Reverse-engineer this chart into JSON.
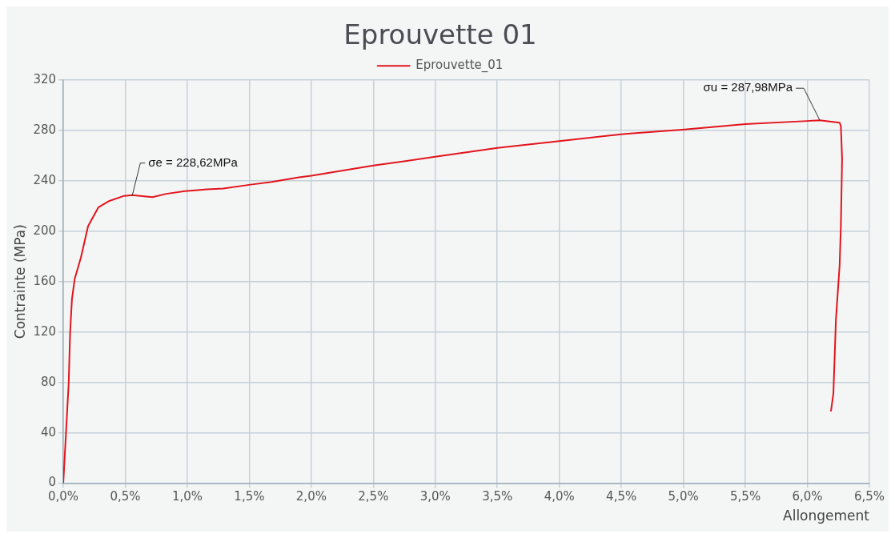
{
  "chart_data": {
    "type": "line",
    "title": "Eprouvette 01",
    "xlabel": "Allongement",
    "ylabel": "Contrainte (MPa)",
    "series": [
      {
        "name": "Eprouvette_01",
        "color": "#e3141c",
        "x": [
          0,
          0.022,
          0.044,
          0.055,
          0.07,
          0.092,
          0.142,
          0.2,
          0.284,
          0.372,
          0.49,
          0.557,
          0.72,
          0.83,
          0.98,
          1.16,
          1.29,
          1.51,
          1.68,
          1.9,
          2.0,
          2.5,
          3.0,
          3.5,
          4.0,
          4.53,
          5.01,
          5.5,
          6.0,
          6.1,
          6.26,
          6.27,
          6.28,
          6.27,
          6.26,
          6.23,
          6.21,
          6.19
        ],
        "values": [
          0,
          40,
          80,
          119,
          146,
          162,
          179,
          204,
          219,
          224,
          228,
          228.62,
          227,
          229.6,
          231.7,
          233.2,
          233.8,
          236.9,
          239,
          242.7,
          244,
          252,
          259,
          266,
          271.5,
          277.2,
          280.7,
          284.9,
          287.4,
          287.98,
          286,
          283.4,
          257.6,
          203.8,
          172.8,
          129.4,
          71.5,
          57
        ]
      }
    ],
    "annotations": [
      {
        "text": "σe = 228,62MPa",
        "x": 0.557,
        "y": 228.62
      },
      {
        "text": "σu = 287,98MPa",
        "x": 6.1,
        "y": 287.98
      }
    ],
    "xlim": [
      0,
      6.5
    ],
    "ylim": [
      0,
      320
    ],
    "xticks": [
      {
        "value": 0,
        "label": "0,0%"
      },
      {
        "value": 0.5,
        "label": "0,5%"
      },
      {
        "value": 1,
        "label": "1,0%"
      },
      {
        "value": 1.5,
        "label": "1,5%"
      },
      {
        "value": 2,
        "label": "2,0%"
      },
      {
        "value": 2.5,
        "label": "2,5%"
      },
      {
        "value": 3,
        "label": "3,0%"
      },
      {
        "value": 3.5,
        "label": "3,5%"
      },
      {
        "value": 4,
        "label": "4,0%"
      },
      {
        "value": 4.5,
        "label": "4,5%"
      },
      {
        "value": 5,
        "label": "5,0%"
      },
      {
        "value": 5.5,
        "label": "5,5%"
      },
      {
        "value": 6,
        "label": "6,0%"
      },
      {
        "value": 6.5,
        "label": "6,5%"
      }
    ],
    "yticks": [
      0,
      40,
      80,
      120,
      160,
      200,
      240,
      280,
      320
    ],
    "grid": true,
    "legend": "top",
    "marker": "none",
    "line_style": "solid"
  }
}
